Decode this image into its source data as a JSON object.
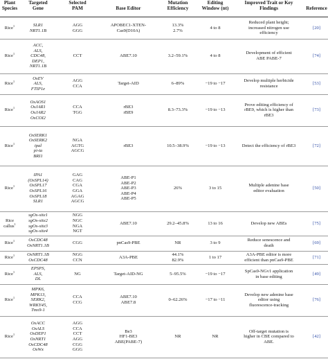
{
  "headers": [
    {
      "l1": "Plant",
      "l2": "Species"
    },
    {
      "l1": "Targeted",
      "l2": "Gene"
    },
    {
      "l1": "Selected",
      "l2": "PAM"
    },
    {
      "l1": "",
      "l2": "Base Editor"
    },
    {
      "l1": "Mutation",
      "l2": "Efficiency"
    },
    {
      "l1": "Editing",
      "l2": "Window (nt)"
    },
    {
      "l1": "Improved Trait or Key",
      "l2": "Findings"
    },
    {
      "l1": "",
      "l2": "Reference"
    }
  ],
  "rows": [
    {
      "species": "Rice",
      "sup": "1",
      "genes": [
        "SLR1",
        "NRT1.1B"
      ],
      "pam": [
        "AGG",
        "GGG"
      ],
      "editor": [
        "APOBEC1-XTEN-",
        "Cas9(D10A)"
      ],
      "eff": [
        "13.3%",
        "2.7%"
      ],
      "window": [
        "4 to 8"
      ],
      "finding": [
        "Reduced plant height;",
        "increased nitrogen use",
        "efficiency"
      ],
      "ref": "[20]"
    },
    {
      "species": "Rice",
      "sup": "1",
      "genes": [
        "ACC,",
        "ALS,",
        "CDC48,",
        "DEP1,",
        "NRT1.1B"
      ],
      "pam": [
        "CCT"
      ],
      "editor": [
        "ABE7.10"
      ],
      "eff": [
        "3.2–59.1%"
      ],
      "window": [
        "4 to 8"
      ],
      "finding": [
        "Development of efficient",
        "ABE PABE-7"
      ],
      "ref": "[74]"
    },
    {
      "species": "Rice",
      "sup": "1",
      "genes": [
        "OsEV",
        "ALS,",
        "FTIP1e"
      ],
      "pam": [
        "AGG",
        "CCA"
      ],
      "editor": [
        "Target-AID"
      ],
      "eff": [
        "6–89%"
      ],
      "window": [
        "−19 to −17"
      ],
      "finding": [
        "Develop multiple herbicide",
        "resistance"
      ],
      "ref": "[53]"
    },
    {
      "species": "Rice",
      "sup": "1",
      "genes": [
        "OsAOS1",
        "OsJAR1",
        "OsJAR2",
        "OsCOI2"
      ],
      "pam": [
        "CCA",
        "TGG"
      ],
      "editor": [
        "rBE3",
        "rBE9"
      ],
      "eff": [
        "8.3–73.3%"
      ],
      "window": [
        "−19 to −13"
      ],
      "finding": [
        "Prove editing efficiency of",
        "rBE9, which is higher than",
        "rBE3"
      ],
      "ref": "[73]"
    },
    {
      "species": "Rice",
      "sup": "1",
      "genes": [
        "OsSERK1",
        "OsSERK2",
        "ipal",
        "pi-ta",
        "BRI1"
      ],
      "pam": [
        "NGA",
        "AGTG",
        "AGCG"
      ],
      "editor": [
        "rBE3"
      ],
      "eff": [
        "10.5–38.9%"
      ],
      "window": [
        "−19 to −13"
      ],
      "finding": [
        "Detect the efficiency of rBE3"
      ],
      "ref": "[72]"
    },
    {
      "species": "Rice",
      "sup": "1",
      "genes": [
        "IPA1",
        "(OsSPL14)",
        "OsSPL17",
        "OsSPL16",
        "OsSPL18",
        "SLR1"
      ],
      "pam": [
        "GAG",
        "CAG",
        "CGA",
        "GGA",
        "AGAG",
        "AGCG"
      ],
      "editor": [
        "ABE-P1",
        "ABE-P2",
        "ABE-P3",
        "ABE-P4",
        "ABE-P5"
      ],
      "eff": [
        "26%"
      ],
      "window": [
        "3 to 15"
      ],
      "finding": [
        "Multiple adenine base",
        "editor evaluation"
      ],
      "ref": "[50]"
    },
    {
      "species": "Rice",
      "sup": "1",
      "species2": "callus",
      "genes": [
        "sgOs-site1",
        "sgOs-site2",
        "sgOs-site3",
        "sgOs-site4"
      ],
      "pam": [
        "NGG",
        "NGC",
        "NGA",
        "NGT"
      ],
      "editor": [
        "ABE7.10"
      ],
      "eff": [
        "29.2–45.8%"
      ],
      "window": [
        "13 to 16"
      ],
      "finding": [
        "Develop new ABEs"
      ],
      "ref": "[75]"
    },
    {
      "species": "Rice",
      "sup": "1",
      "genes": [
        "OsCDC48",
        "OsNRT1.1B"
      ],
      "pam": [
        "CGG"
      ],
      "editor": [
        "pnCas9-PBE"
      ],
      "eff": [
        "NR"
      ],
      "window": [
        "3 to 9"
      ],
      "finding": [
        "Reduce senescence and",
        "death"
      ],
      "ref": "[69]"
    },
    {
      "species": "Rice",
      "sup": "1",
      "genes": [
        "OsNRT1.1B",
        "OsCDC48"
      ],
      "pam": [
        "NGG",
        "CCN"
      ],
      "editor": [
        "A3A-PBE"
      ],
      "eff": [
        "44.1%",
        "82.9%"
      ],
      "window": [
        "1 to 17"
      ],
      "finding": [
        "A3A-PBE editor is more",
        "efficient than pnCas9-PBE"
      ],
      "ref": "[71]"
    },
    {
      "species": "Rice",
      "sup": "1",
      "genes": [
        "EPSPS,",
        "ALS,",
        "DL"
      ],
      "pam": [
        "NG"
      ],
      "editor": [
        "Target-AID-NG"
      ],
      "eff": [
        "5–95.5%"
      ],
      "window": [
        "−19 to −17"
      ],
      "finding": [
        "SpCas9-NGv1 application",
        "in base editing"
      ],
      "ref": "[49]"
    },
    {
      "species": "Rice",
      "sup": "1",
      "genes": [
        "MPK6,",
        "MPK13,",
        "SERK2,",
        "WRKY45,",
        "Tms9-1"
      ],
      "pam": [
        "CCA",
        "CCG"
      ],
      "editor": [
        "ABE7.10",
        "ABE7.8"
      ],
      "eff": [
        "0–62.26%"
      ],
      "window": [
        "−17 to −11"
      ],
      "finding": [
        "Develop new adenine base",
        "editor using",
        "fluorescence-tracking"
      ],
      "ref": "[76]"
    },
    {
      "species": "Rice",
      "sup": "1",
      "genes": [
        "OsACC",
        "OsALS",
        "OsDEP1",
        "OsNRT1",
        "OsCDC48",
        "OsWx"
      ],
      "pam": [
        "AGG",
        "CCA",
        "CCT",
        "AGG",
        "CGG",
        "GGG"
      ],
      "editor": [
        "Be3",
        "HF1-BE3",
        "ABE(PABE-7)"
      ],
      "eff": [
        "NR"
      ],
      "window": [
        "NR"
      ],
      "finding": [
        "Off-target mutation is",
        "higher in CBE compared to",
        "ABE."
      ],
      "ref": "[42]"
    }
  ]
}
